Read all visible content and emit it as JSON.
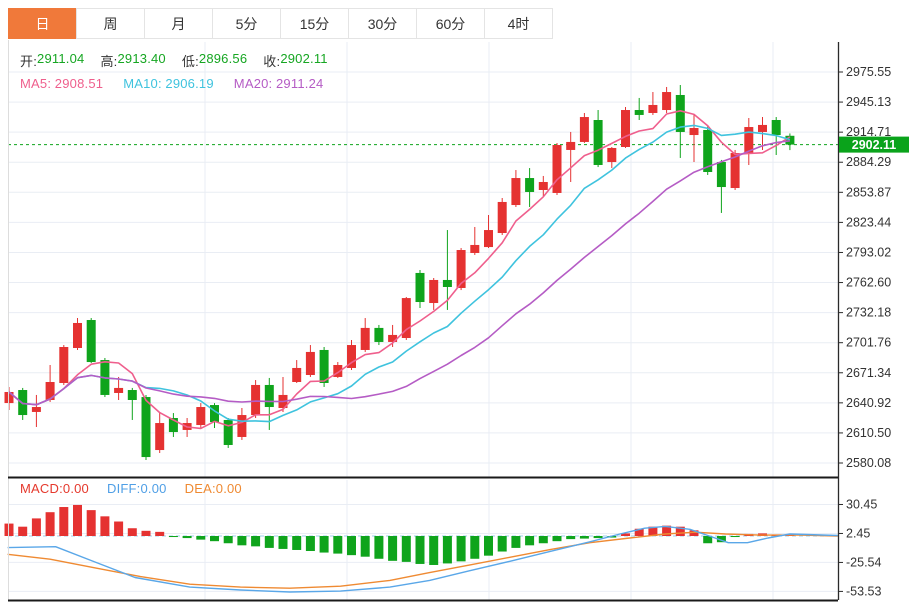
{
  "tabs": {
    "items": [
      {
        "label": "日",
        "selected": true
      },
      {
        "label": "周",
        "selected": false
      },
      {
        "label": "月",
        "selected": false
      },
      {
        "label": "5分",
        "selected": false
      },
      {
        "label": "15分",
        "selected": false
      },
      {
        "label": "30分",
        "selected": false
      },
      {
        "label": "60分",
        "selected": false
      },
      {
        "label": "4时",
        "selected": false
      }
    ],
    "selected_bg": "#f0793a"
  },
  "ohlc": {
    "open_label": "开:",
    "open_value": "2911.04",
    "high_label": "高:",
    "high_value": "2913.40",
    "low_label": "低:",
    "low_value": "2896.56",
    "close_label": "收:",
    "close_value": "2902.11",
    "value_color": "#16a622"
  },
  "ma": {
    "items": [
      {
        "label": "MA5:",
        "value": "2908.51",
        "color": "#ef5f8d"
      },
      {
        "label": "MA10:",
        "value": "2906.19",
        "color": "#3fc3de"
      },
      {
        "label": "MA20:",
        "value": "2911.24",
        "color": "#b55cc5"
      }
    ]
  },
  "macd_header": {
    "items": [
      {
        "label": "MACD:",
        "value": "0.00",
        "color": "#e5392d"
      },
      {
        "label": "DIFF:",
        "value": "0.00",
        "color": "#4f9fe6"
      },
      {
        "label": "DEA:",
        "value": "0.00",
        "color": "#ef8a32"
      }
    ]
  },
  "price_badge": {
    "text": "2902.11",
    "bg": "#0aa31b",
    "fg": "#ffffff"
  },
  "chart_data": {
    "type": "candlestick",
    "panels": [
      "price",
      "macd"
    ],
    "legend_position": "top-left",
    "grid": true,
    "y_axis_ticks": [
      "2975.55",
      "2945.13",
      "2914.71",
      "2884.29",
      "2853.87",
      "2823.44",
      "2793.02",
      "2762.60",
      "2732.18",
      "2701.76",
      "2671.34",
      "2640.92",
      "2610.50",
      "2580.08"
    ],
    "y_range": [
      2580.08,
      2975.55
    ],
    "current_price": 2902.11,
    "candles": [
      [
        2640.7,
        2657.0,
        2633.7,
        2651.9
      ],
      [
        2653.9,
        2656.0,
        2623.6,
        2628.6
      ],
      [
        2631.7,
        2648.9,
        2616.5,
        2636.7
      ],
      [
        2643.8,
        2679.2,
        2641.8,
        2662.0
      ],
      [
        2661.0,
        2699.4,
        2659.0,
        2697.4
      ],
      [
        2696.4,
        2726.7,
        2694.4,
        2721.7
      ],
      [
        2724.7,
        2726.7,
        2681.2,
        2682.2
      ],
      [
        2684.2,
        2686.3,
        2646.8,
        2648.9
      ],
      [
        2650.9,
        2667.1,
        2643.8,
        2656.0
      ],
      [
        2653.9,
        2656.0,
        2623.6,
        2643.8
      ],
      [
        2646.8,
        2648.9,
        2583.1,
        2586.1
      ],
      [
        2593.2,
        2631.7,
        2590.2,
        2620.5
      ],
      [
        2625.6,
        2630.6,
        2606.4,
        2611.4
      ],
      [
        2613.5,
        2625.6,
        2606.4,
        2620.5
      ],
      [
        2618.5,
        2640.7,
        2615.5,
        2636.7
      ],
      [
        2638.7,
        2640.7,
        2615.5,
        2621.5
      ],
      [
        2623.6,
        2625.6,
        2595.3,
        2598.3
      ],
      [
        2606.4,
        2635.7,
        2603.4,
        2628.6
      ],
      [
        2628.6,
        2664.0,
        2625.6,
        2659.0
      ],
      [
        2659.0,
        2666.1,
        2613.5,
        2636.7
      ],
      [
        2635.7,
        2667.1,
        2631.7,
        2648.9
      ],
      [
        2662.0,
        2684.2,
        2661.0,
        2676.2
      ],
      [
        2669.1,
        2699.4,
        2667.1,
        2692.4
      ],
      [
        2694.4,
        2697.4,
        2657.0,
        2661.0
      ],
      [
        2667.1,
        2682.2,
        2666.1,
        2679.2
      ],
      [
        2676.2,
        2704.5,
        2674.1,
        2699.4
      ],
      [
        2694.4,
        2726.7,
        2692.4,
        2716.7
      ],
      [
        2716.7,
        2719.7,
        2699.4,
        2702.5
      ],
      [
        2702.5,
        2719.7,
        2697.4,
        2709.6
      ],
      [
        2706.5,
        2748.0,
        2704.5,
        2746.9
      ],
      [
        2772.3,
        2775.3,
        2736.9,
        2742.9
      ],
      [
        2741.9,
        2767.2,
        2734.9,
        2765.2
      ],
      [
        2765.2,
        2815.7,
        2734.9,
        2758.1
      ],
      [
        2757.1,
        2797.5,
        2755.0,
        2795.5
      ],
      [
        2792.5,
        2818.8,
        2790.5,
        2800.6
      ],
      [
        2798.5,
        2830.9,
        2797.5,
        2815.7
      ],
      [
        2812.7,
        2848.1,
        2810.7,
        2844.1
      ],
      [
        2841.0,
        2876.4,
        2839.0,
        2868.3
      ],
      [
        2868.3,
        2878.4,
        2839.0,
        2854.2
      ],
      [
        2856.2,
        2870.4,
        2850.1,
        2864.3
      ],
      [
        2853.2,
        2903.8,
        2851.2,
        2901.7
      ],
      [
        2896.7,
        2914.9,
        2864.3,
        2904.8
      ],
      [
        2904.8,
        2934.1,
        2903.8,
        2930.0
      ],
      [
        2927.0,
        2937.1,
        2879.4,
        2881.5
      ],
      [
        2884.5,
        2899.7,
        2878.4,
        2898.7
      ],
      [
        2899.7,
        2940.2,
        2898.7,
        2937.1
      ],
      [
        2937.1,
        2949.3,
        2927.0,
        2932.1
      ],
      [
        2934.1,
        2955.3,
        2932.1,
        2942.2
      ],
      [
        2937.1,
        2960.4,
        2934.1,
        2955.3
      ],
      [
        2952.3,
        2962.4,
        2888.6,
        2914.9
      ],
      [
        2911.8,
        2932.1,
        2884.5,
        2918.9
      ],
      [
        2916.9,
        2922.0,
        2871.4,
        2874.4
      ],
      [
        2884.5,
        2886.6,
        2833.0,
        2859.2
      ],
      [
        2858.2,
        2896.7,
        2856.2,
        2893.6
      ],
      [
        2893.6,
        2929.0,
        2881.5,
        2919.9
      ],
      [
        2914.9,
        2930.0,
        2896.7,
        2922.0
      ],
      [
        2927.0,
        2930.0,
        2891.6,
        2911.8
      ],
      [
        2911.04,
        2913.4,
        2896.56,
        2902.11
      ]
    ],
    "ma_overlays": [
      {
        "name": "MA5",
        "period": 5,
        "color": "#ef5f8d",
        "last_value": 2908.51
      },
      {
        "name": "MA10",
        "period": 10,
        "color": "#3fc3de",
        "last_value": 2906.19
      },
      {
        "name": "MA20",
        "period": 20,
        "color": "#b55cc5",
        "last_value": 2911.24
      }
    ],
    "macd": {
      "axis_ticks": [
        "30.45",
        "2.45",
        "-25.54",
        "-53.53"
      ],
      "last_values": {
        "macd": 0.0,
        "diff": 0.0,
        "dea": 0.0
      },
      "histogram": [
        12,
        9,
        17,
        23,
        28,
        30,
        25,
        19,
        14,
        7.5,
        5,
        4,
        -1,
        -2,
        -3.5,
        -5,
        -7,
        -9,
        -10,
        -11.5,
        -12.5,
        -13.5,
        -14.5,
        -16,
        -17,
        -18.5,
        -20,
        -22,
        -24,
        -25,
        -27,
        -28,
        -26.5,
        -24.5,
        -22,
        -19,
        -15,
        -11.5,
        -9,
        -7,
        -5,
        -3,
        -2.5,
        -2,
        -1.5,
        2.5,
        7,
        9,
        10,
        9,
        5.5,
        -7,
        -6,
        -1,
        2,
        2.5,
        1.5,
        0
      ],
      "diff_points": [
        [
          0.9,
          -11.2
        ],
        [
          4.4,
          -10.3
        ],
        [
          7.3,
          -25.2
        ],
        [
          10.2,
          -40.1
        ],
        [
          14.2,
          -49.4
        ],
        [
          17.9,
          -52.2
        ],
        [
          21.5,
          -54.1
        ],
        [
          25.2,
          -53.2
        ],
        [
          28.8,
          -49.4
        ],
        [
          31.7,
          -42.9
        ],
        [
          34.6,
          -33.6
        ],
        [
          37.6,
          -24.3
        ],
        [
          40.5,
          -14.9
        ],
        [
          43.4,
          -5.6
        ],
        [
          45.6,
          1.9
        ],
        [
          47.4,
          7.5
        ],
        [
          48.9,
          9.3
        ],
        [
          50.7,
          6.5
        ],
        [
          52.3,
          -0.9
        ],
        [
          53.5,
          -6.5
        ],
        [
          54.9,
          -6.5
        ],
        [
          56.4,
          -1.9
        ],
        [
          58,
          1.9
        ],
        [
          61.5,
          0.5
        ]
      ],
      "dea_points": [
        [
          0.9,
          -17.7
        ],
        [
          4,
          -22.4
        ],
        [
          7.3,
          -30.8
        ],
        [
          10.6,
          -39.2
        ],
        [
          14.2,
          -46.6
        ],
        [
          17.9,
          -49.4
        ],
        [
          21.5,
          -50.4
        ],
        [
          25.2,
          -48.5
        ],
        [
          28.8,
          -42.9
        ],
        [
          31.7,
          -35.4
        ],
        [
          34.6,
          -28
        ],
        [
          37.6,
          -20.5
        ],
        [
          40.5,
          -13.1
        ],
        [
          43.4,
          -6.5
        ],
        [
          46.3,
          -1.9
        ],
        [
          48.9,
          1.9
        ],
        [
          51.1,
          3.7
        ],
        [
          53.3,
          1.9
        ],
        [
          55.8,
          0.9
        ],
        [
          58.7,
          0.9
        ],
        [
          61.5,
          0
        ]
      ],
      "colors": {
        "positive": "#e53231",
        "negative": "#0fa41c",
        "diff": "#5aa7e8",
        "dea": "#ef8a32",
        "zero_line": "#9cd1ee"
      }
    },
    "colors": {
      "up": "#e53231",
      "down": "#0fa41c",
      "grid": "#e9edf4",
      "axis_text": "#333333",
      "axis_line": "#2a2a2a",
      "panel_border": "#1a1a1a",
      "dashed_price_line": "#0fa41c"
    }
  }
}
